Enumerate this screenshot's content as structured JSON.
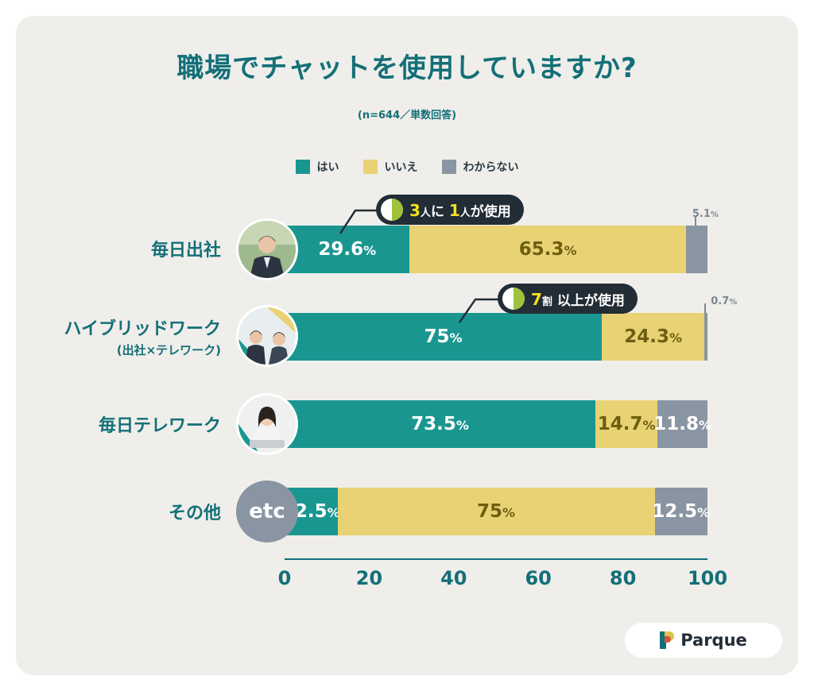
{
  "header": {
    "title": "職場でチャットを使用していますか?",
    "subtitle": "(n=644／単数回答)"
  },
  "legend": [
    {
      "label": "はい",
      "color": "#1a9690"
    },
    {
      "label": "いいえ",
      "color": "#e9d273"
    },
    {
      "label": "わからない",
      "color": "#8a95a3"
    }
  ],
  "callouts": [
    {
      "parts": [
        "3",
        "人",
        "に",
        "1",
        "人",
        "が使用"
      ]
    },
    {
      "parts": [
        "7",
        "割",
        "以上が使用"
      ]
    }
  ],
  "avatars": {
    "etc_label": "etc"
  },
  "brand": {
    "name": "Parque"
  },
  "chart_data": {
    "type": "bar",
    "orientation": "horizontal",
    "stacked": true,
    "title": "職場でチャットを使用していますか?",
    "subtitle": "(n=644／単数回答)",
    "categories": [
      {
        "label": "毎日出社",
        "sub": ""
      },
      {
        "label": "ハイブリッドワーク",
        "sub": "(出社×テレワーク)"
      },
      {
        "label": "毎日テレワーク",
        "sub": ""
      },
      {
        "label": "その他",
        "sub": ""
      }
    ],
    "series": [
      {
        "name": "はい",
        "color": "#1a9690",
        "text_color": "#ffffff",
        "values": [
          29.6,
          75,
          73.5,
          12.5
        ],
        "display": [
          "29.6",
          "75",
          "73.5",
          "12.5"
        ]
      },
      {
        "name": "いいえ",
        "color": "#e9d273",
        "text_color": "#6d5e12",
        "values": [
          65.3,
          24.3,
          14.7,
          75
        ],
        "display": [
          "65.3",
          "24.3",
          "14.7",
          "75"
        ]
      },
      {
        "name": "わからない",
        "color": "#8a95a3",
        "text_color": "#ffffff",
        "values": [
          5.1,
          0.7,
          11.8,
          12.5
        ],
        "display": [
          "5.1",
          "0.7",
          "11.8",
          "12.5"
        ]
      }
    ],
    "unit": "%",
    "xlim": [
      0,
      100
    ],
    "ticks": [
      "0",
      "20",
      "40",
      "60",
      "80",
      "100"
    ],
    "legend_position": "top"
  }
}
